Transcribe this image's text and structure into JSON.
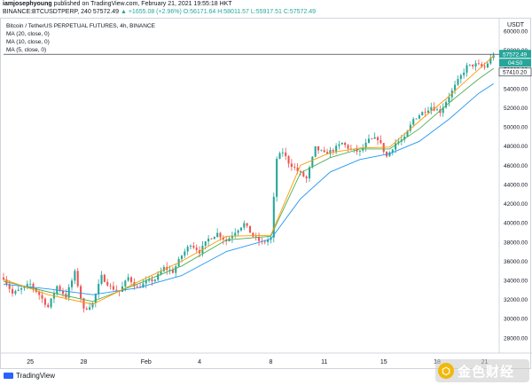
{
  "header": {
    "publisher": "iamjosephyoung",
    "published_text": "published on TradingView.com, February 21, 2021 19:55:18 HKT"
  },
  "symbol_line": {
    "symbol": "BINANCE:BTCUSDTPERP, 240",
    "last": "57572.49",
    "change": "▲ +1655.08 (+2.96%)",
    "ohlc": "O:56171.64 H:58011.57 L:55917.51 C:57572.49"
  },
  "legend": {
    "title": "Bitcoin / TetherUS PERPETUAL FUTURES, 4h, BINANCE",
    "ma1": "MA (20, close, 0)",
    "ma2": "MA (10, close, 0)",
    "ma3": "MA (5, close, 0)"
  },
  "axis": {
    "currency": "USDT"
  },
  "price_labels": {
    "last_price": "57572.49",
    "countdown": "04:50",
    "ma_value": "57410.20"
  },
  "footer": {
    "brand": "TradingView"
  },
  "watermark": {
    "text": "金色财经"
  },
  "colors": {
    "up": "#26a69a",
    "down": "#ef5350",
    "ma20": "#2196f3",
    "ma10": "#4caf50",
    "ma5": "#ff9800"
  },
  "chart_data": {
    "type": "candlestick",
    "title": "Bitcoin / TetherUS PERPETUAL FUTURES, 4h, BINANCE",
    "ylabel": "USDT",
    "ylim": [
      26600,
      61200
    ],
    "y_ticks": [
      28000,
      30000,
      32000,
      34000,
      36000,
      38000,
      40000,
      42000,
      44000,
      46000,
      48000,
      50000,
      52000,
      54000,
      56000,
      58000,
      60000
    ],
    "x_ticks": [
      "25",
      "28",
      "Feb",
      "4",
      "8",
      "11",
      "15",
      "18",
      "21"
    ],
    "x_tick_index": [
      9,
      27,
      48,
      66,
      90,
      108,
      128,
      146,
      162
    ],
    "close_path": [
      [
        0,
        34300
      ],
      [
        3,
        32600
      ],
      [
        6,
        33100
      ],
      [
        9,
        33600
      ],
      [
        12,
        32500
      ],
      [
        15,
        31200
      ],
      [
        18,
        33400
      ],
      [
        21,
        32300
      ],
      [
        24,
        34800
      ],
      [
        27,
        30900
      ],
      [
        30,
        31600
      ],
      [
        33,
        34400
      ],
      [
        36,
        33300
      ],
      [
        39,
        32800
      ],
      [
        42,
        34300
      ],
      [
        45,
        33200
      ],
      [
        48,
        33800
      ],
      [
        51,
        34100
      ],
      [
        54,
        35300
      ],
      [
        57,
        34900
      ],
      [
        60,
        36600
      ],
      [
        63,
        37800
      ],
      [
        66,
        37000
      ],
      [
        69,
        38300
      ],
      [
        72,
        38900
      ],
      [
        75,
        38100
      ],
      [
        78,
        39100
      ],
      [
        81,
        39900
      ],
      [
        84,
        38600
      ],
      [
        87,
        37900
      ],
      [
        90,
        38400
      ],
      [
        92,
        46700
      ],
      [
        94,
        47400
      ],
      [
        96,
        46300
      ],
      [
        99,
        45400
      ],
      [
        102,
        44600
      ],
      [
        105,
        47800
      ],
      [
        108,
        47200
      ],
      [
        111,
        47600
      ],
      [
        114,
        48300
      ],
      [
        117,
        47600
      ],
      [
        120,
        47400
      ],
      [
        123,
        48600
      ],
      [
        126,
        48800
      ],
      [
        129,
        46900
      ],
      [
        132,
        48300
      ],
      [
        135,
        48800
      ],
      [
        138,
        50800
      ],
      [
        141,
        51500
      ],
      [
        144,
        52100
      ],
      [
        147,
        51600
      ],
      [
        150,
        53200
      ],
      [
        153,
        54800
      ],
      [
        156,
        56300
      ],
      [
        159,
        56500
      ],
      [
        162,
        56200
      ],
      [
        165,
        57572
      ]
    ],
    "series": [
      {
        "name": "MA (20, close, 0)",
        "values": [
          [
            0,
            33600
          ],
          [
            15,
            33100
          ],
          [
            30,
            32500
          ],
          [
            45,
            33200
          ],
          [
            60,
            34500
          ],
          [
            75,
            37000
          ],
          [
            90,
            38300
          ],
          [
            100,
            42500
          ],
          [
            110,
            45300
          ],
          [
            120,
            46600
          ],
          [
            130,
            47200
          ],
          [
            140,
            48500
          ],
          [
            150,
            50800
          ],
          [
            160,
            53500
          ],
          [
            165,
            54500
          ]
        ]
      },
      {
        "name": "MA (10, close, 0)",
        "values": [
          [
            0,
            33900
          ],
          [
            15,
            32800
          ],
          [
            30,
            31800
          ],
          [
            45,
            33600
          ],
          [
            60,
            35500
          ],
          [
            75,
            38200
          ],
          [
            90,
            38600
          ],
          [
            100,
            45200
          ],
          [
            110,
            46800
          ],
          [
            120,
            47700
          ],
          [
            130,
            47700
          ],
          [
            140,
            49800
          ],
          [
            150,
            52500
          ],
          [
            160,
            55000
          ],
          [
            165,
            56100
          ]
        ]
      },
      {
        "name": "MA (5, close, 0)",
        "values": [
          [
            0,
            34100
          ],
          [
            15,
            32500
          ],
          [
            30,
            31500
          ],
          [
            45,
            33800
          ],
          [
            60,
            36000
          ],
          [
            75,
            38600
          ],
          [
            90,
            38700
          ],
          [
            100,
            46000
          ],
          [
            110,
            47300
          ],
          [
            120,
            47800
          ],
          [
            130,
            47900
          ],
          [
            140,
            50600
          ],
          [
            150,
            53200
          ],
          [
            160,
            56000
          ],
          [
            165,
            57410
          ]
        ]
      }
    ]
  }
}
